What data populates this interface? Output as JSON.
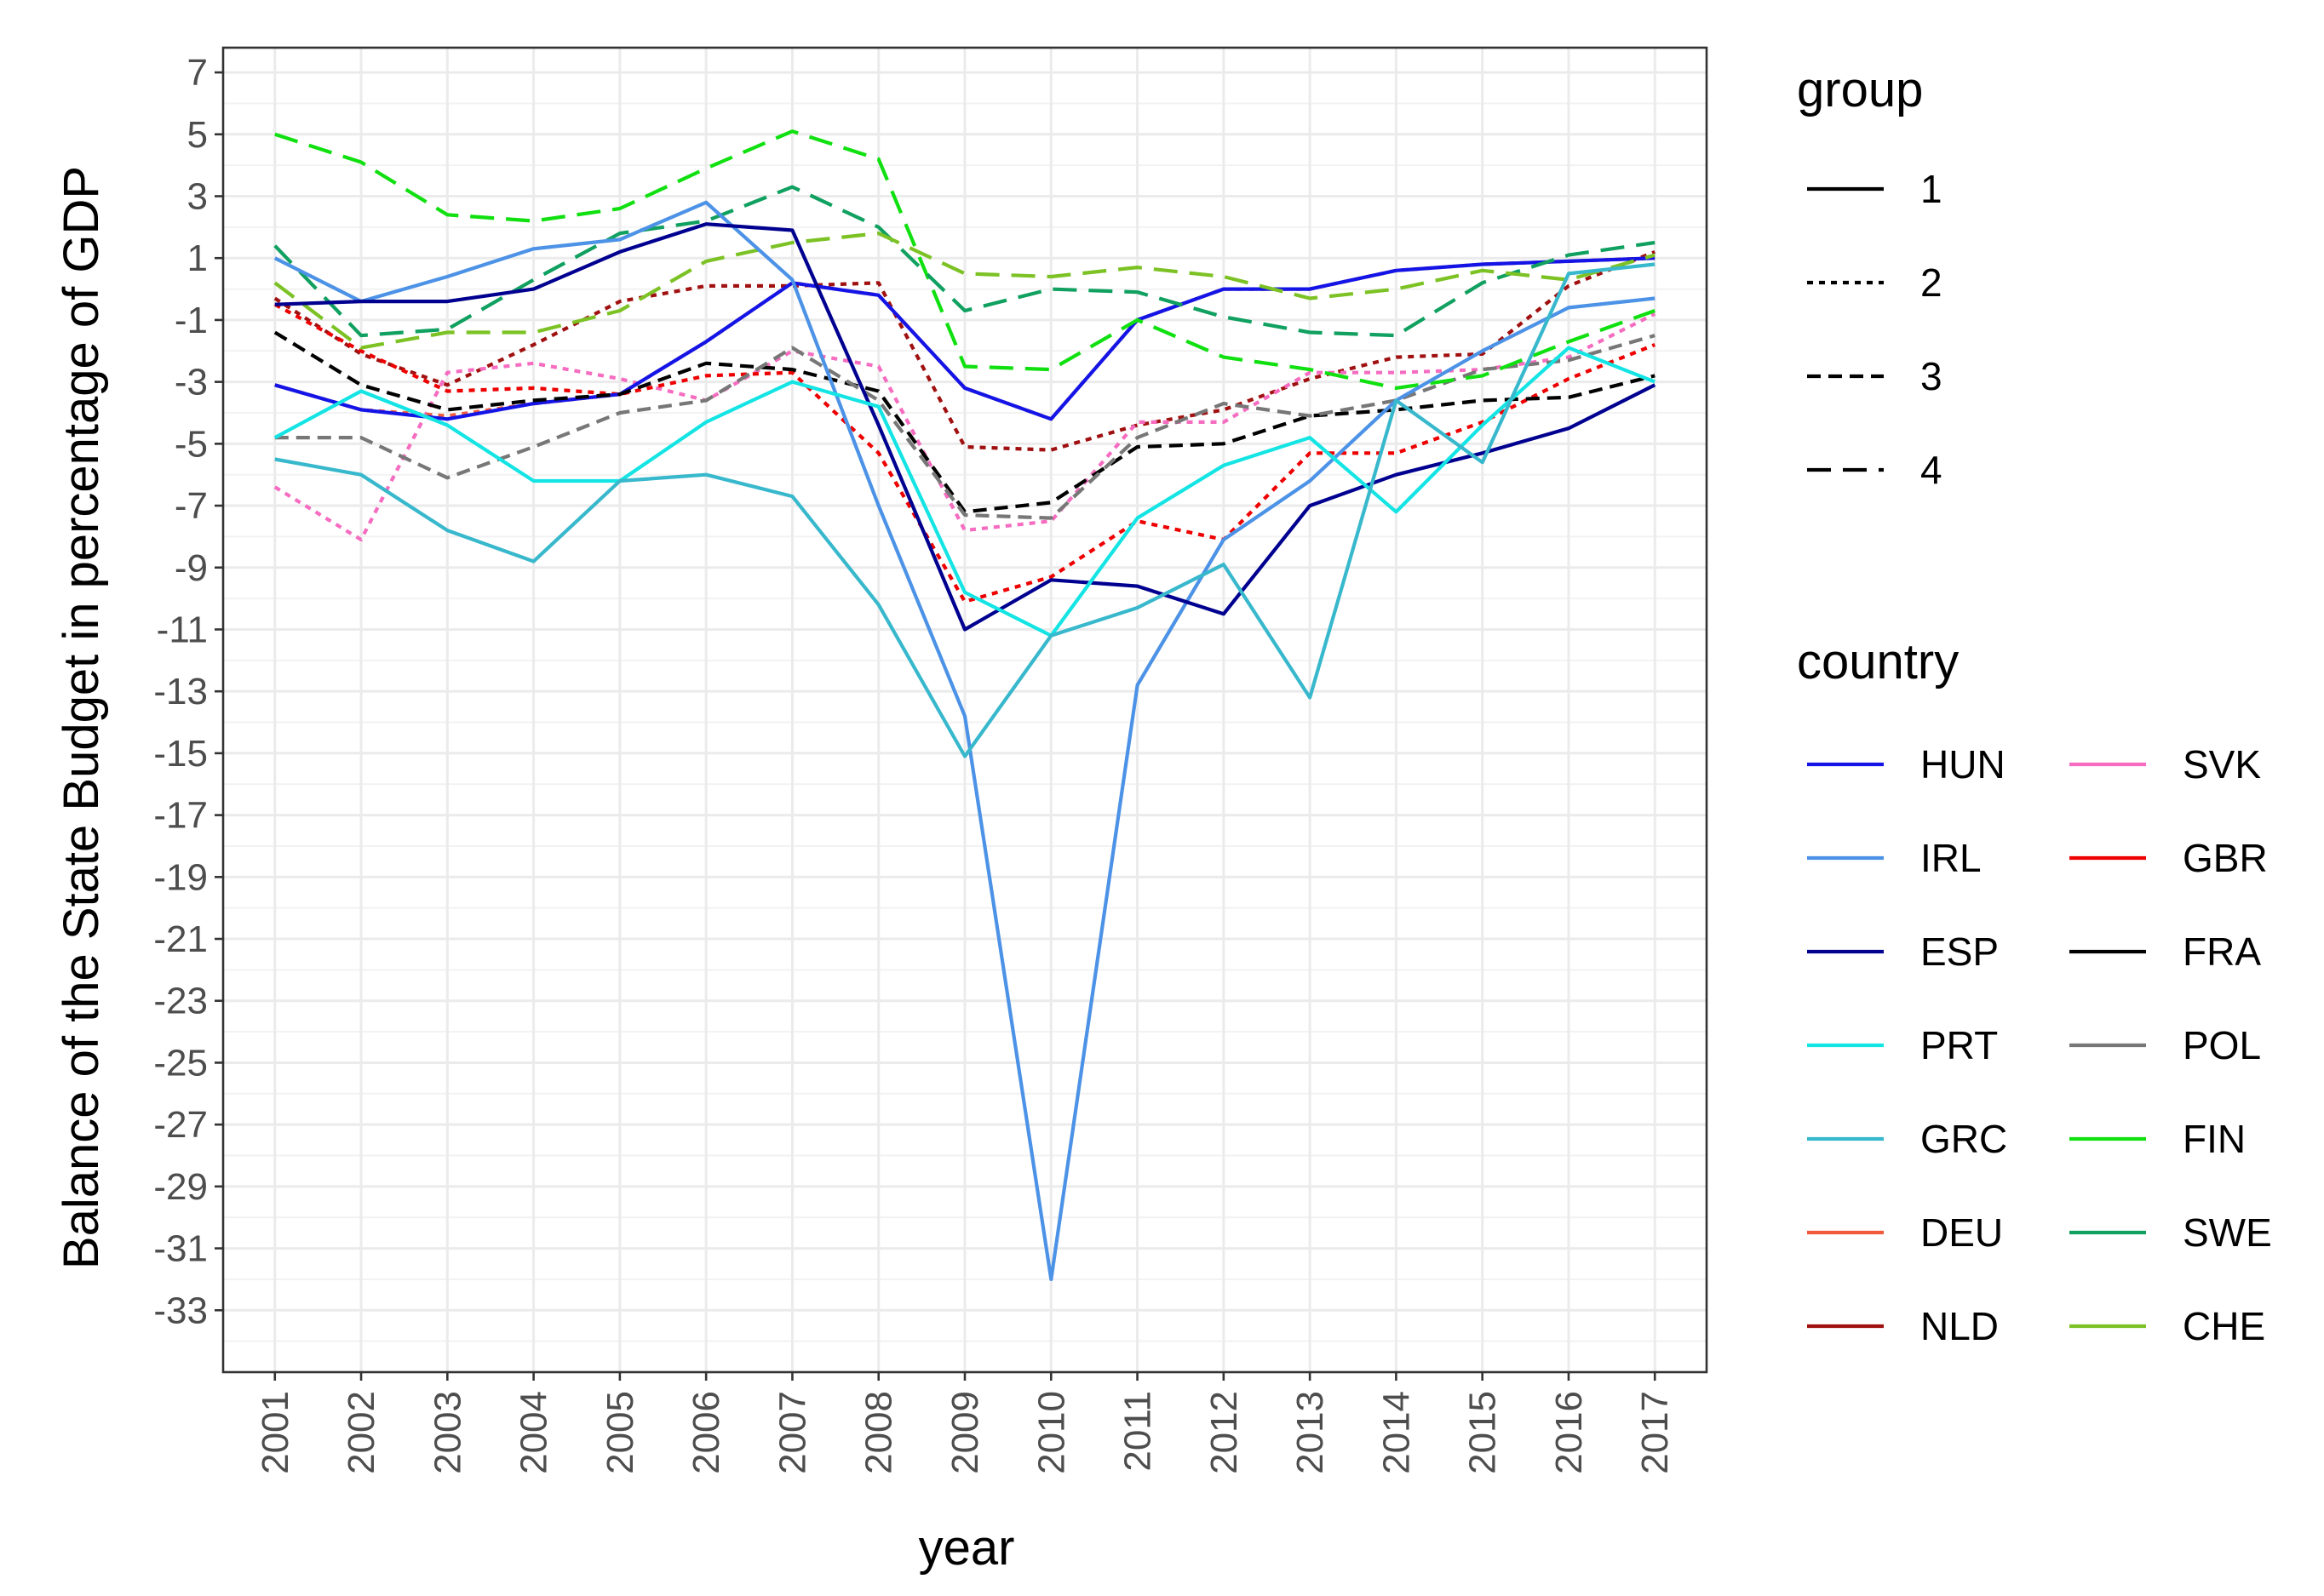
{
  "chart_data": {
    "type": "line",
    "title": "",
    "xlabel": "year",
    "ylabel": "Balance of the State Budget in percentage of GDP",
    "x": [
      2001,
      2002,
      2003,
      2004,
      2005,
      2006,
      2007,
      2008,
      2009,
      2010,
      2011,
      2012,
      2013,
      2014,
      2015,
      2016,
      2017
    ],
    "x_tick_labels": [
      "2001",
      "2002",
      "2003",
      "2004",
      "2005",
      "2006",
      "2007",
      "2008",
      "2009",
      "2010",
      "2011",
      "2012",
      "2013",
      "2014",
      "2015",
      "2016",
      "2017"
    ],
    "y_ticks": [
      7,
      5,
      3,
      1,
      -1,
      -3,
      -5,
      -7,
      -9,
      -11,
      -13,
      -15,
      -17,
      -19,
      -21,
      -23,
      -25,
      -27,
      -29,
      -31,
      -33
    ],
    "y_tick_labels": [
      "7",
      "5",
      "3",
      "1",
      "-1",
      "-3",
      "-5",
      "-7",
      "-9",
      "-11",
      "-13",
      "-15",
      "-17",
      "-19",
      "-21",
      "-23",
      "-25",
      "-27",
      "-29",
      "-31",
      "-33"
    ],
    "ylim": [
      -35,
      7.8
    ],
    "xlim": [
      2000.4,
      2017.6
    ],
    "grid": true,
    "legend_group": {
      "title": "group",
      "entries": [
        {
          "label": "1",
          "dash": "solid"
        },
        {
          "label": "2",
          "dash": "dotted"
        },
        {
          "label": "3",
          "dash": "dashed"
        },
        {
          "label": "4",
          "dash": "longdash"
        }
      ]
    },
    "legend_country": {
      "title": "country",
      "columns": [
        [
          "HUN",
          "IRL",
          "ESP",
          "PRT",
          "GRC",
          "DEU",
          "NLD"
        ],
        [
          "SVK",
          "GBR",
          "FRA",
          "POL",
          "FIN",
          "SWE",
          "CHE"
        ]
      ]
    },
    "series": [
      {
        "name": "NLD",
        "group": "2",
        "color": "#a01010",
        "values": [
          -0.3,
          -2.1,
          -3.1,
          -1.8,
          -0.4,
          0.1,
          0.1,
          0.2,
          -5.1,
          -5.2,
          -4.4,
          -3.9,
          -2.9,
          -2.2,
          -2.1,
          0.1,
          1.2
        ]
      },
      {
        "name": "SVK",
        "group": "2",
        "color": "#f56cc0",
        "values": [
          -6.4,
          -8.1,
          -2.7,
          -2.4,
          -2.9,
          -3.6,
          -2.0,
          -2.5,
          -7.8,
          -7.5,
          -4.3,
          -4.3,
          -2.7,
          -2.7,
          -2.6,
          -2.2,
          -0.8
        ]
      },
      {
        "name": "GBR",
        "group": "2",
        "color": "#ee0000",
        "values": [
          -0.5,
          -2.0,
          -3.3,
          -3.2,
          -3.4,
          -2.8,
          -2.7,
          -5.3,
          -10.1,
          -9.3,
          -7.5,
          -8.1,
          -5.3,
          -5.3,
          -4.3,
          -2.9,
          -1.8
        ]
      },
      {
        "name": "DEU",
        "group": "2",
        "color": "#f25a3c",
        "values": [
          -3.1,
          -3.9,
          -4.1,
          -3.7,
          -3.4,
          -1.7,
          0.2,
          -0.2,
          -3.2,
          -4.2,
          -1.0,
          0.0,
          0.0,
          0.6,
          0.8,
          0.9,
          1.0
        ]
      },
      {
        "name": "HUN",
        "group": "1",
        "color": "#1414e6",
        "values": [
          -3.1,
          -3.9,
          -4.2,
          -3.7,
          -3.4,
          -1.7,
          0.2,
          -0.2,
          -3.2,
          -4.2,
          -1.0,
          0.0,
          0.0,
          0.6,
          0.8,
          0.9,
          1.0
        ]
      },
      {
        "name": "FRA",
        "group": "3",
        "color": "#000000",
        "values": [
          -1.4,
          -3.1,
          -3.9,
          -3.6,
          -3.4,
          -2.4,
          -2.6,
          -3.3,
          -7.2,
          -6.9,
          -5.1,
          -5.0,
          -4.1,
          -3.9,
          -3.6,
          -3.5,
          -2.8
        ]
      },
      {
        "name": "POL",
        "group": "3",
        "color": "#777777",
        "values": [
          -4.8,
          -4.8,
          -6.1,
          -5.1,
          -4.0,
          -3.6,
          -1.9,
          -3.6,
          -7.3,
          -7.4,
          -4.8,
          -3.7,
          -4.1,
          -3.6,
          -2.6,
          -2.3,
          -1.5
        ]
      },
      {
        "name": "FIN",
        "group": "4",
        "color": "#10e010",
        "values": [
          5.0,
          4.1,
          2.4,
          2.2,
          2.6,
          3.9,
          5.1,
          4.2,
          -2.5,
          -2.6,
          -1.0,
          -2.2,
          -2.6,
          -3.2,
          -2.8,
          -1.7,
          -0.7
        ]
      },
      {
        "name": "SWE",
        "group": "4",
        "color": "#10a060",
        "values": [
          1.4,
          -1.5,
          -1.3,
          0.3,
          1.8,
          2.2,
          3.3,
          2.0,
          -0.7,
          0.0,
          -0.1,
          -0.9,
          -1.4,
          -1.5,
          0.2,
          1.1,
          1.5
        ]
      },
      {
        "name": "CHE",
        "group": "4",
        "color": "#7cc224",
        "values": [
          0.2,
          -1.9,
          -1.4,
          -1.4,
          -0.7,
          0.9,
          1.5,
          1.8,
          0.5,
          0.4,
          0.7,
          0.4,
          -0.3,
          0.0,
          0.6,
          0.3,
          1.1
        ]
      },
      {
        "name": "IRL",
        "group": "1",
        "color": "#4c92e6",
        "values": [
          1.0,
          -0.4,
          0.4,
          1.3,
          1.6,
          2.8,
          0.3,
          -7.0,
          -13.8,
          -32.0,
          -12.8,
          -8.1,
          -6.2,
          -3.6,
          -2.0,
          -0.6,
          -0.3
        ]
      },
      {
        "name": "ESP",
        "group": "1",
        "color": "#000090",
        "values": [
          -0.5,
          -0.4,
          -0.4,
          0.0,
          1.2,
          2.1,
          1.9,
          -4.4,
          -11.0,
          -9.4,
          -9.6,
          -10.5,
          -7.0,
          -6.0,
          -5.3,
          -4.5,
          -3.1
        ]
      },
      {
        "name": "PRT",
        "group": "1",
        "color": "#14e4e4",
        "values": [
          -4.8,
          -3.3,
          -4.4,
          -6.2,
          -6.2,
          -4.3,
          -3.0,
          -3.8,
          -9.8,
          -11.2,
          -7.4,
          -5.7,
          -4.8,
          -7.2,
          -4.4,
          -1.9,
          -3.0
        ]
      },
      {
        "name": "GRC",
        "group": "1",
        "color": "#38b8cc",
        "values": [
          -5.5,
          -6.0,
          -7.8,
          -8.8,
          -6.2,
          -6.0,
          -6.7,
          -10.2,
          -15.1,
          -11.2,
          -10.3,
          -8.9,
          -13.2,
          -3.6,
          -5.6,
          0.5,
          0.8
        ]
      }
    ]
  }
}
